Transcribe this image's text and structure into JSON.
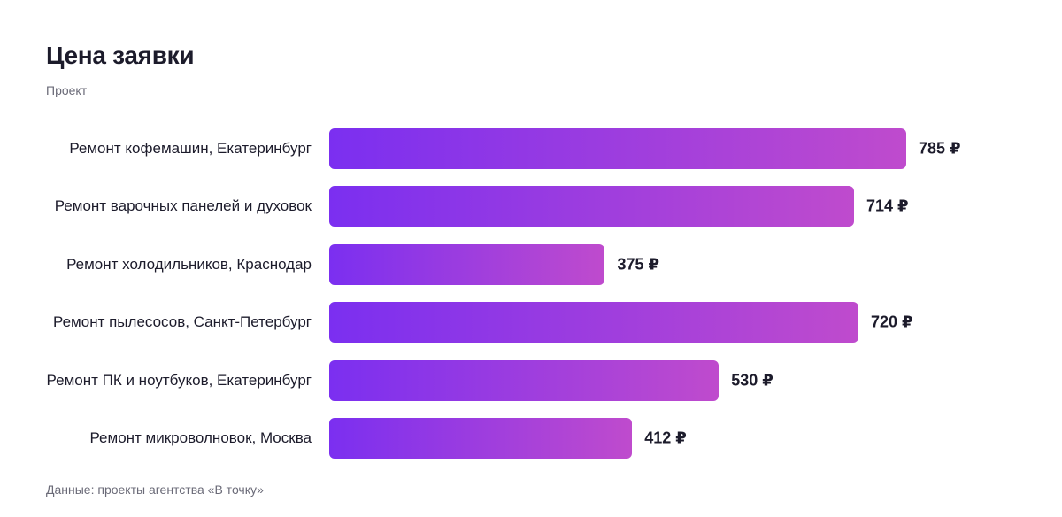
{
  "chart_data": {
    "type": "bar",
    "orientation": "horizontal",
    "title": "Цена заявки",
    "subtitle": "Проект",
    "source": "Данные: проекты агентства «В точку»",
    "categories": [
      "Ремонт кофемашин, Екатеринбург",
      "Ремонт варочных панелей и духовок",
      "Ремонт холодильников, Краснодар",
      "Ремонт пылесосов, Санкт-Петербург",
      "Ремонт ПК и ноутбуков, Екатеринбург",
      "Ремонт микроволновок, Москва"
    ],
    "values": [
      785,
      714,
      375,
      720,
      530,
      412
    ],
    "value_labels": [
      "785 ₽",
      "714 ₽",
      "375 ₽",
      "720 ₽",
      "530 ₽",
      "412 ₽"
    ],
    "gradient": [
      "#7b2ff0",
      "#bf4bcd"
    ]
  }
}
